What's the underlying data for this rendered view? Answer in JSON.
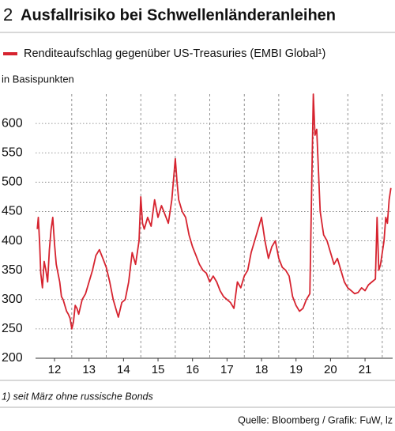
{
  "chart_data": {
    "type": "line",
    "number": "2",
    "title": "Ausfallrisiko bei Schwellenländeranleihen",
    "ylabel": "in Basispunkten",
    "footnote": "1) seit März ohne russische Bonds",
    "source": "Quelle: Bloomberg / Grafik: FuW, lz",
    "xlim": [
      11.95,
      22.3
    ],
    "xticks": [
      {
        "value": 12.5,
        "label": "12"
      },
      {
        "value": 13.5,
        "label": "13"
      },
      {
        "value": 14.5,
        "label": "14"
      },
      {
        "value": 15.5,
        "label": "15"
      },
      {
        "value": 16.5,
        "label": "16"
      },
      {
        "value": 17.5,
        "label": "17"
      },
      {
        "value": 18.5,
        "label": "18"
      },
      {
        "value": 19.5,
        "label": "19"
      },
      {
        "value": 20.5,
        "label": "20"
      },
      {
        "value": 21.5,
        "label": "21"
      }
    ],
    "ylim": [
      200,
      650
    ],
    "yticks": [
      200,
      250,
      300,
      350,
      400,
      450,
      500,
      550,
      600
    ],
    "grid": true,
    "x": [
      12.0,
      12.03,
      12.07,
      12.1,
      12.15,
      12.2,
      12.25,
      12.3,
      12.35,
      12.4,
      12.45,
      12.5,
      12.55,
      12.6,
      12.65,
      12.7,
      12.75,
      12.8,
      12.85,
      12.9,
      12.95,
      13.0,
      13.05,
      13.1,
      13.15,
      13.2,
      13.3,
      13.4,
      13.5,
      13.6,
      13.7,
      13.8,
      13.9,
      14.0,
      14.1,
      14.2,
      14.3,
      14.35,
      14.45,
      14.55,
      14.65,
      14.75,
      14.85,
      14.95,
      15.0,
      15.05,
      15.1,
      15.2,
      15.3,
      15.4,
      15.5,
      15.6,
      15.7,
      15.8,
      15.9,
      16.0,
      16.05,
      16.1,
      16.2,
      16.3,
      16.4,
      16.5,
      16.6,
      16.7,
      16.8,
      16.9,
      17.0,
      17.1,
      17.2,
      17.3,
      17.4,
      17.5,
      17.6,
      17.7,
      17.8,
      17.9,
      18.0,
      18.1,
      18.2,
      18.3,
      18.4,
      18.5,
      18.6,
      18.7,
      18.8,
      18.9,
      19.0,
      19.1,
      19.2,
      19.3,
      19.4,
      19.5,
      19.6,
      19.7,
      19.8,
      19.9,
      20.0,
      20.05,
      20.1,
      20.15,
      20.2,
      20.25,
      20.3,
      20.4,
      20.5,
      20.6,
      20.7,
      20.8,
      20.9,
      21.0,
      21.1,
      21.2,
      21.3,
      21.4,
      21.5,
      21.6,
      21.7,
      21.8,
      21.85,
      21.9,
      21.95,
      22.0,
      22.05,
      22.1,
      22.15,
      22.2,
      22.25
    ],
    "series": [
      {
        "name": "Renditeaufschlag gegenüber US-Treasuries (EMBI Global¹)",
        "color": "#d6232f",
        "values": [
          420,
          440,
          395,
          345,
          320,
          365,
          350,
          330,
          385,
          420,
          440,
          395,
          360,
          345,
          330,
          305,
          300,
          290,
          280,
          275,
          268,
          250,
          262,
          290,
          285,
          275,
          300,
          310,
          330,
          350,
          375,
          385,
          370,
          355,
          330,
          300,
          280,
          270,
          295,
          300,
          330,
          380,
          360,
          400,
          475,
          430,
          420,
          440,
          425,
          470,
          440,
          460,
          445,
          430,
          470,
          540,
          500,
          470,
          450,
          440,
          410,
          390,
          375,
          360,
          350,
          345,
          330,
          340,
          330,
          315,
          305,
          300,
          295,
          285,
          330,
          320,
          340,
          350,
          380,
          400,
          420,
          440,
          400,
          370,
          390,
          400,
          370,
          355,
          350,
          340,
          305,
          290,
          280,
          285,
          300,
          310,
          650,
          580,
          590,
          520,
          450,
          430,
          410,
          400,
          380,
          360,
          370,
          350,
          330,
          320,
          315,
          310,
          312,
          320,
          315,
          325,
          330,
          335,
          440,
          350,
          360,
          380,
          400,
          440,
          430,
          470,
          490
        ]
      }
    ]
  }
}
